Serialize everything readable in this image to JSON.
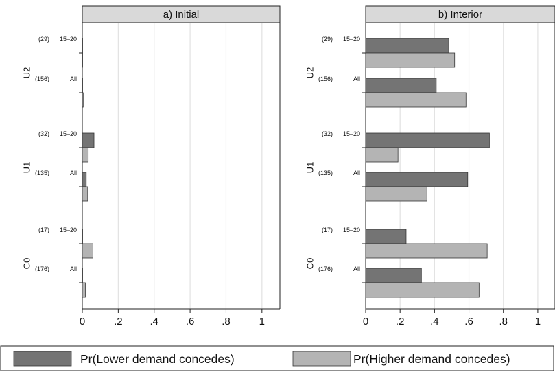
{
  "chart_data": [
    {
      "type": "bar",
      "orientation": "horizontal",
      "title": "a) Initial",
      "xlim": [
        0,
        1.1
      ],
      "xticks": [
        "0",
        ".2",
        ".4",
        ".6",
        ".8",
        "1"
      ],
      "grid": true,
      "groups": [
        {
          "name": "U2",
          "rows": [
            {
              "count": "(29)",
              "label": "15–20",
              "values": [
                0.0,
                0.0
              ]
            },
            {
              "count": "(156)",
              "label": "All",
              "values": [
                0.0,
                0.005
              ]
            }
          ]
        },
        {
          "name": "U1",
          "rows": [
            {
              "count": "(32)",
              "label": "15–20",
              "values": [
                0.065,
                0.033
              ]
            },
            {
              "count": "(135)",
              "label": "All",
              "values": [
                0.022,
                0.03
              ]
            }
          ]
        },
        {
          "name": "C0",
          "rows": [
            {
              "count": "(17)",
              "label": "15–20",
              "values": [
                0.0,
                0.059
              ]
            },
            {
              "count": "(176)",
              "label": "All",
              "values": [
                0.0,
                0.017
              ]
            }
          ]
        }
      ]
    },
    {
      "type": "bar",
      "orientation": "horizontal",
      "title": "b) Interior",
      "xlim": [
        0,
        1.1
      ],
      "xticks": [
        "0",
        ".2",
        ".4",
        ".6",
        ".8",
        "1"
      ],
      "grid": true,
      "groups": [
        {
          "name": "U2",
          "rows": [
            {
              "count": "(29)",
              "label": "15–20",
              "values": [
                0.483,
                0.517
              ]
            },
            {
              "count": "(156)",
              "label": "All",
              "values": [
                0.41,
                0.583
              ]
            }
          ]
        },
        {
          "name": "U1",
          "rows": [
            {
              "count": "(32)",
              "label": "15–20",
              "values": [
                0.719,
                0.188
              ]
            },
            {
              "count": "(135)",
              "label": "All",
              "values": [
                0.593,
                0.356
              ]
            }
          ]
        },
        {
          "name": "C0",
          "rows": [
            {
              "count": "(17)",
              "label": "15–20",
              "values": [
                0.235,
                0.706
              ]
            },
            {
              "count": "(176)",
              "label": "All",
              "values": [
                0.324,
                0.659
              ]
            }
          ]
        }
      ]
    }
  ],
  "legend": {
    "placement": "bottom",
    "items": [
      {
        "label": "Pr(Lower demand concedes)",
        "color": "#747474"
      },
      {
        "label": "Pr(Higher demand concedes)",
        "color": "#b4b4b4"
      }
    ]
  },
  "colors": {
    "lower": "#747474",
    "higher": "#b4b4b4",
    "grid": "#e2e2e2",
    "header": "#d9d9d9"
  }
}
